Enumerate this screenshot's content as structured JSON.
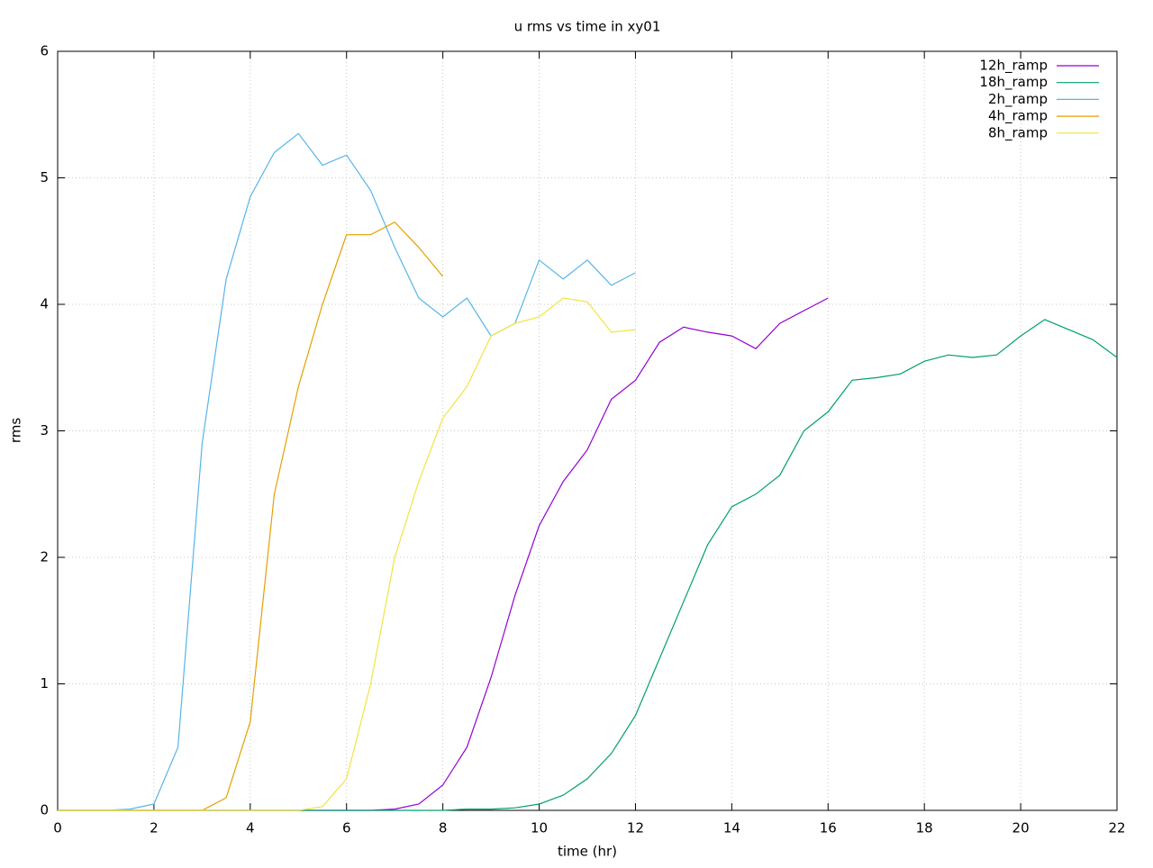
{
  "chart_data": {
    "type": "line",
    "title": "u rms vs time in xy01",
    "x_label": "time (hr)",
    "y_label": "rms",
    "x": [
      0,
      0.5,
      1,
      1.5,
      2,
      2.5,
      3,
      3.5,
      4,
      4.5,
      5,
      5.5,
      6,
      6.5,
      7,
      7.5,
      8,
      8.5,
      9,
      9.5,
      10,
      10.5,
      11,
      11.5,
      12,
      12.5,
      13,
      13.5,
      14,
      14.5,
      15,
      15.5,
      16,
      16.5,
      17,
      17.5,
      18,
      18.5,
      19,
      19.5,
      20,
      20.5,
      21,
      21.5,
      22
    ],
    "series": [
      {
        "name": "12h_ramp",
        "color": "#9400d3",
        "values": [
          0,
          0,
          0,
          0,
          0,
          0,
          0,
          0,
          0,
          0,
          0,
          0,
          0,
          0,
          0.01,
          0.05,
          0.2,
          0.5,
          1.05,
          1.7,
          2.25,
          2.6,
          2.85,
          3.25,
          3.4,
          3.7,
          3.82,
          3.78,
          3.75,
          3.65,
          3.85,
          3.95,
          4.05,
          null,
          null,
          null,
          null,
          null,
          null,
          null,
          null,
          null,
          null,
          null,
          null
        ]
      },
      {
        "name": "18h_ramp",
        "color": "#009e73",
        "values": [
          0,
          0,
          0,
          0,
          0,
          0,
          0,
          0,
          0,
          0,
          0,
          0,
          0,
          0,
          0,
          0,
          0,
          0.01,
          0.01,
          0.02,
          0.05,
          0.12,
          0.25,
          0.45,
          0.75,
          1.2,
          1.65,
          2.1,
          2.4,
          2.5,
          2.65,
          3.0,
          3.15,
          3.4,
          3.42,
          3.45,
          3.55,
          3.6,
          3.58,
          3.6,
          3.75,
          3.88,
          3.8,
          3.72,
          3.58
        ]
      },
      {
        "name": "2h_ramp",
        "color": "#56b4e9",
        "values": [
          0,
          0,
          0,
          0.01,
          0.05,
          0.5,
          2.9,
          4.2,
          4.85,
          5.2,
          5.35,
          5.1,
          5.18,
          4.9,
          4.45,
          4.05,
          3.9,
          4.05,
          3.75,
          3.85,
          4.35,
          4.2,
          4.35,
          4.15,
          4.25,
          null,
          null,
          null,
          null,
          null,
          null,
          null,
          null,
          null,
          null,
          null,
          null,
          null,
          null,
          null,
          null,
          null,
          null,
          null,
          null
        ]
      },
      {
        "name": "4h_ramp",
        "color": "#e69f00",
        "values": [
          0,
          0,
          0,
          0,
          0,
          0,
          0,
          0.1,
          0.7,
          2.5,
          3.35,
          4.0,
          4.55,
          4.55,
          4.65,
          4.45,
          4.22,
          null,
          null,
          null,
          null,
          null,
          null,
          null,
          null,
          null,
          null,
          null,
          null,
          null,
          null,
          null,
          null,
          null,
          null,
          null,
          null,
          null,
          null,
          null,
          null,
          null,
          null,
          null,
          null
        ]
      },
      {
        "name": "8h_ramp",
        "color": "#f0e442",
        "values": [
          0,
          0,
          0,
          0,
          0,
          0,
          0,
          0,
          0,
          0,
          0,
          0.03,
          0.25,
          1.0,
          2.0,
          2.6,
          3.1,
          3.35,
          3.75,
          3.85,
          3.9,
          4.05,
          4.02,
          3.78,
          3.8,
          null,
          null,
          null,
          null,
          null,
          null,
          null,
          null,
          null,
          null,
          null,
          null,
          null,
          null,
          null,
          null,
          null,
          null,
          null,
          null
        ]
      }
    ],
    "xlim": [
      0,
      22
    ],
    "xticks": [
      0,
      2,
      4,
      6,
      8,
      10,
      12,
      14,
      16,
      18,
      20,
      22
    ],
    "ylim": [
      0,
      6
    ],
    "yticks": [
      0,
      1,
      2,
      3,
      4,
      5,
      6
    ],
    "grid": true,
    "legend": "top-right"
  }
}
